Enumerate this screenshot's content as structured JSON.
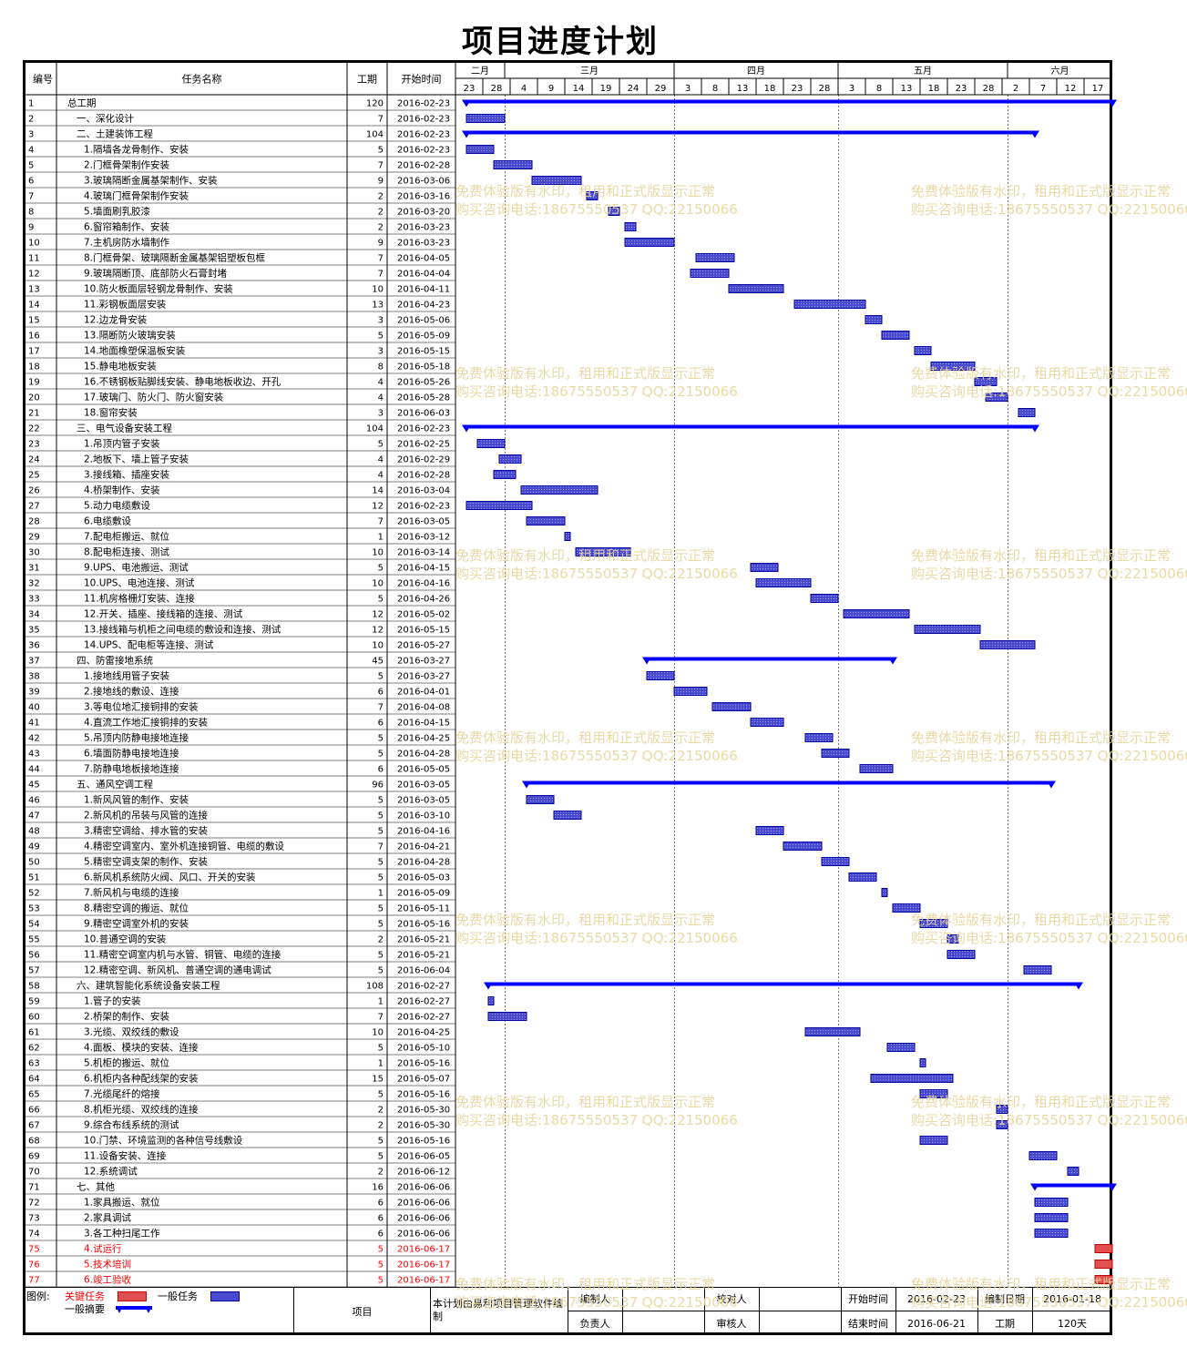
{
  "page": {
    "title": "项目进度计划"
  },
  "headers": {
    "id": "编号",
    "name": "任务名称",
    "duration": "工期",
    "start": "开始时间"
  },
  "timeline": {
    "months": [
      "二月",
      "三月",
      "四月",
      "五月",
      "六月"
    ],
    "days": [
      "23",
      "28",
      "4",
      "9",
      "14",
      "19",
      "24",
      "29",
      "3",
      "8",
      "13",
      "18",
      "23",
      "28",
      "3",
      "8",
      "13",
      "18",
      "23",
      "28",
      "2",
      "7",
      "12",
      "17"
    ]
  },
  "watermark": {
    "line1": "免费体验版有水印，租用和正式版显示正常",
    "line2": "购买咨询电话:18675550537 QQ:22150066"
  },
  "colors": {
    "normal_bar": "#4a4ad0",
    "summary_bar": "#0000ff",
    "critical_bar": "#e05050",
    "critical_text": "#ff0000"
  },
  "footer": {
    "legend_label": "图例:",
    "legend_critical": "关键任务",
    "legend_normal": "一般任务",
    "legend_summary": "一般摘要",
    "project_label": "项目",
    "software_note": "本计划由易利项目管理软件编制",
    "drafter_label": "编制人",
    "checker_label": "校对人",
    "owner_label": "负责人",
    "reviewer_label": "审核人",
    "start_label": "开始时间",
    "start_value": "2016-02-23",
    "end_label": "结束时间",
    "end_value": "2016-06-21",
    "draft_date_label": "编制日期",
    "draft_date_value": "2016-01-18",
    "duration_label": "工期",
    "duration_value": "120天"
  },
  "chart_data": {
    "type": "gantt",
    "x_axis": {
      "start": "2016-02-21",
      "end": "2016-06-21",
      "unit": "day"
    },
    "tasks": [
      {
        "id": "1",
        "name": "总工期",
        "level": 0,
        "duration": 120,
        "start": "2016-02-23",
        "summary": true,
        "critical": false
      },
      {
        "id": "2",
        "name": "一、深化设计",
        "level": 1,
        "duration": 7,
        "start": "2016-02-23",
        "summary": false,
        "critical": false
      },
      {
        "id": "3",
        "name": "二、土建装饰工程",
        "level": 1,
        "duration": 104,
        "start": "2016-02-23",
        "summary": true,
        "critical": false
      },
      {
        "id": "4",
        "name": "1.隔墙各龙骨制作、安装",
        "level": 2,
        "duration": 5,
        "start": "2016-02-23",
        "summary": false,
        "critical": false
      },
      {
        "id": "5",
        "name": "2.门框骨架制作安装",
        "level": 2,
        "duration": 7,
        "start": "2016-02-28",
        "summary": false,
        "critical": false
      },
      {
        "id": "6",
        "name": "3.玻璃隔断金属基架制作、安装",
        "level": 2,
        "duration": 9,
        "start": "2016-03-06",
        "summary": false,
        "critical": false
      },
      {
        "id": "7",
        "name": "4.玻璃门框骨架制作安装",
        "level": 2,
        "duration": 2,
        "start": "2016-03-16",
        "summary": false,
        "critical": false
      },
      {
        "id": "8",
        "name": "5.墙面刷乳胶漆",
        "level": 2,
        "duration": 2,
        "start": "2016-03-20",
        "summary": false,
        "critical": false
      },
      {
        "id": "9",
        "name": "6.窗帘箱制作、安装",
        "level": 2,
        "duration": 2,
        "start": "2016-03-23",
        "summary": false,
        "critical": false
      },
      {
        "id": "10",
        "name": "7.主机房防水墙制作",
        "level": 2,
        "duration": 9,
        "start": "2016-03-23",
        "summary": false,
        "critical": false
      },
      {
        "id": "11",
        "name": "8.门框骨架、玻璃隔断金属基架铝塑板包框",
        "level": 2,
        "duration": 7,
        "start": "2016-04-05",
        "summary": false,
        "critical": false
      },
      {
        "id": "12",
        "name": "9.玻璃隔断顶、底部防火石膏封堵",
        "level": 2,
        "duration": 7,
        "start": "2016-04-04",
        "summary": false,
        "critical": false
      },
      {
        "id": "13",
        "name": "10.防火板面层轻钢龙骨制作、安装",
        "level": 2,
        "duration": 10,
        "start": "2016-04-11",
        "summary": false,
        "critical": false
      },
      {
        "id": "14",
        "name": "11.彩钢板面层安装",
        "level": 2,
        "duration": 13,
        "start": "2016-04-23",
        "summary": false,
        "critical": false
      },
      {
        "id": "15",
        "name": "12.边龙骨安装",
        "level": 2,
        "duration": 3,
        "start": "2016-05-06",
        "summary": false,
        "critical": false
      },
      {
        "id": "16",
        "name": "13.隔断防火玻璃安装",
        "level": 2,
        "duration": 5,
        "start": "2016-05-09",
        "summary": false,
        "critical": false
      },
      {
        "id": "17",
        "name": "14.地面橡塑保温板安装",
        "level": 2,
        "duration": 3,
        "start": "2016-05-15",
        "summary": false,
        "critical": false
      },
      {
        "id": "18",
        "name": "15.静电地板安装",
        "level": 2,
        "duration": 8,
        "start": "2016-05-18",
        "summary": false,
        "critical": false
      },
      {
        "id": "19",
        "name": "16.不锈钢板贴脚线安装、静电地板收边、开孔",
        "level": 2,
        "duration": 4,
        "start": "2016-05-26",
        "summary": false,
        "critical": false
      },
      {
        "id": "20",
        "name": "17.玻璃门、防火门、防火窗安装",
        "level": 2,
        "duration": 4,
        "start": "2016-05-28",
        "summary": false,
        "critical": false
      },
      {
        "id": "21",
        "name": "18.窗帘安装",
        "level": 2,
        "duration": 3,
        "start": "2016-06-03",
        "summary": false,
        "critical": false
      },
      {
        "id": "22",
        "name": "三、电气设备安装工程",
        "level": 1,
        "duration": 104,
        "start": "2016-02-23",
        "summary": true,
        "critical": false
      },
      {
        "id": "23",
        "name": "1.吊顶内管子安装",
        "level": 2,
        "duration": 5,
        "start": "2016-02-25",
        "summary": false,
        "critical": false
      },
      {
        "id": "24",
        "name": "2.地板下、墙上管子安装",
        "level": 2,
        "duration": 4,
        "start": "2016-02-29",
        "summary": false,
        "critical": false
      },
      {
        "id": "25",
        "name": "3.接线箱、插座安装",
        "level": 2,
        "duration": 4,
        "start": "2016-02-28",
        "summary": false,
        "critical": false
      },
      {
        "id": "26",
        "name": "4.桥架制作、安装",
        "level": 2,
        "duration": 14,
        "start": "2016-03-04",
        "summary": false,
        "critical": false
      },
      {
        "id": "27",
        "name": "5.动力电缆敷设",
        "level": 2,
        "duration": 12,
        "start": "2016-02-23",
        "summary": false,
        "critical": false
      },
      {
        "id": "28",
        "name": "6.电缆敷设",
        "level": 2,
        "duration": 7,
        "start": "2016-03-05",
        "summary": false,
        "critical": false
      },
      {
        "id": "29",
        "name": "7.配电柜搬运、就位",
        "level": 2,
        "duration": 1,
        "start": "2016-03-12",
        "summary": false,
        "critical": false
      },
      {
        "id": "30",
        "name": "8.配电柜连接、测试",
        "level": 2,
        "duration": 10,
        "start": "2016-03-14",
        "summary": false,
        "critical": false
      },
      {
        "id": "31",
        "name": "9.UPS、电池搬运、测试",
        "level": 2,
        "duration": 5,
        "start": "2016-04-15",
        "summary": false,
        "critical": false
      },
      {
        "id": "32",
        "name": "10.UPS、电池连接、测试",
        "level": 2,
        "duration": 10,
        "start": "2016-04-16",
        "summary": false,
        "critical": false
      },
      {
        "id": "33",
        "name": "11.机房格栅灯安装、连接",
        "level": 2,
        "duration": 5,
        "start": "2016-04-26",
        "summary": false,
        "critical": false
      },
      {
        "id": "34",
        "name": "12.开关、插座、接线箱的连接、测试",
        "level": 2,
        "duration": 12,
        "start": "2016-05-02",
        "summary": false,
        "critical": false
      },
      {
        "id": "35",
        "name": "13.接线箱与机柜之间电缆的敷设和连接、测试",
        "level": 2,
        "duration": 12,
        "start": "2016-05-15",
        "summary": false,
        "critical": false
      },
      {
        "id": "36",
        "name": "14.UPS、配电柜等连接、测试",
        "level": 2,
        "duration": 10,
        "start": "2016-05-27",
        "summary": false,
        "critical": false
      },
      {
        "id": "37",
        "name": "四、防雷接地系统",
        "level": 1,
        "duration": 45,
        "start": "2016-03-27",
        "summary": true,
        "critical": false
      },
      {
        "id": "38",
        "name": "1.接地线用管子安装",
        "level": 2,
        "duration": 5,
        "start": "2016-03-27",
        "summary": false,
        "critical": false
      },
      {
        "id": "39",
        "name": "2.接地线的敷设、连接",
        "level": 2,
        "duration": 6,
        "start": "2016-04-01",
        "summary": false,
        "critical": false
      },
      {
        "id": "40",
        "name": "3.等电位地汇接铜排的安装",
        "level": 2,
        "duration": 7,
        "start": "2016-04-08",
        "summary": false,
        "critical": false
      },
      {
        "id": "41",
        "name": "4.直流工作地汇接铜排的安装",
        "level": 2,
        "duration": 6,
        "start": "2016-04-15",
        "summary": false,
        "critical": false
      },
      {
        "id": "42",
        "name": "5.吊顶内防静电接地连接",
        "level": 2,
        "duration": 5,
        "start": "2016-04-25",
        "summary": false,
        "critical": false
      },
      {
        "id": "43",
        "name": "6.墙面防静电接地连接",
        "level": 2,
        "duration": 5,
        "start": "2016-04-28",
        "summary": false,
        "critical": false
      },
      {
        "id": "44",
        "name": "7.防静电地板接地连接",
        "level": 2,
        "duration": 6,
        "start": "2016-05-05",
        "summary": false,
        "critical": false
      },
      {
        "id": "45",
        "name": "五、通风空调工程",
        "level": 1,
        "duration": 96,
        "start": "2016-03-05",
        "summary": true,
        "critical": false
      },
      {
        "id": "46",
        "name": "1.新风风管的制作、安装",
        "level": 2,
        "duration": 5,
        "start": "2016-03-05",
        "summary": false,
        "critical": false
      },
      {
        "id": "47",
        "name": "2.新风机的吊装与风管的连接",
        "level": 2,
        "duration": 5,
        "start": "2016-03-10",
        "summary": false,
        "critical": false
      },
      {
        "id": "48",
        "name": "3.精密空调给、排水管的安装",
        "level": 2,
        "duration": 5,
        "start": "2016-04-16",
        "summary": false,
        "critical": false
      },
      {
        "id": "49",
        "name": "4.精密空调室内、室外机连接铜管、电缆的敷设",
        "level": 2,
        "duration": 7,
        "start": "2016-04-21",
        "summary": false,
        "critical": false
      },
      {
        "id": "50",
        "name": "5.精密空调支架的制作、安装",
        "level": 2,
        "duration": 5,
        "start": "2016-04-28",
        "summary": false,
        "critical": false
      },
      {
        "id": "51",
        "name": "6.新风机系统防火阀、风口、开关的安装",
        "level": 2,
        "duration": 5,
        "start": "2016-05-03",
        "summary": false,
        "critical": false
      },
      {
        "id": "52",
        "name": "7.新风机与电缆的连接",
        "level": 2,
        "duration": 1,
        "start": "2016-05-09",
        "summary": false,
        "critical": false
      },
      {
        "id": "53",
        "name": "8.精密空调的搬运、就位",
        "level": 2,
        "duration": 5,
        "start": "2016-05-11",
        "summary": false,
        "critical": false
      },
      {
        "id": "54",
        "name": "9.精密空调室外机的安装",
        "level": 2,
        "duration": 5,
        "start": "2016-05-16",
        "summary": false,
        "critical": false
      },
      {
        "id": "55",
        "name": "10.普通空调的安装",
        "level": 2,
        "duration": 2,
        "start": "2016-05-21",
        "summary": false,
        "critical": false
      },
      {
        "id": "56",
        "name": "11.精密空调室内机与水管、铜管、电缆的连接",
        "level": 2,
        "duration": 5,
        "start": "2016-05-21",
        "summary": false,
        "critical": false
      },
      {
        "id": "57",
        "name": "12.精密空调、新风机、普通空调的通电调试",
        "level": 2,
        "duration": 5,
        "start": "2016-06-04",
        "summary": false,
        "critical": false
      },
      {
        "id": "58",
        "name": "六、建筑智能化系统设备安装工程",
        "level": 1,
        "duration": 108,
        "start": "2016-02-27",
        "summary": true,
        "critical": false
      },
      {
        "id": "59",
        "name": "1.管子的安装",
        "level": 2,
        "duration": 1,
        "start": "2016-02-27",
        "summary": false,
        "critical": false
      },
      {
        "id": "60",
        "name": "2.桥架的制作、安装",
        "level": 2,
        "duration": 7,
        "start": "2016-02-27",
        "summary": false,
        "critical": false
      },
      {
        "id": "61",
        "name": "3.光缆、双绞线的敷设",
        "level": 2,
        "duration": 10,
        "start": "2016-04-25",
        "summary": false,
        "critical": false
      },
      {
        "id": "62",
        "name": "4.面板、模块的安装、连接",
        "level": 2,
        "duration": 5,
        "start": "2016-05-10",
        "summary": false,
        "critical": false
      },
      {
        "id": "63",
        "name": "5.机柜的搬运、就位",
        "level": 2,
        "duration": 1,
        "start": "2016-05-16",
        "summary": false,
        "critical": false
      },
      {
        "id": "64",
        "name": "6.机柜内各种配线架的安装",
        "level": 2,
        "duration": 15,
        "start": "2016-05-07",
        "summary": false,
        "critical": false
      },
      {
        "id": "65",
        "name": "7.光缆尾纤的熔接",
        "level": 2,
        "duration": 5,
        "start": "2016-05-16",
        "summary": false,
        "critical": false
      },
      {
        "id": "66",
        "name": "8.机柜光缆、双绞线的连接",
        "level": 2,
        "duration": 2,
        "start": "2016-05-30",
        "summary": false,
        "critical": false
      },
      {
        "id": "67",
        "name": "9.综合布线系统的测试",
        "level": 2,
        "duration": 2,
        "start": "2016-05-30",
        "summary": false,
        "critical": false
      },
      {
        "id": "68",
        "name": "10.门禁、环境监测的各种信号线敷设",
        "level": 2,
        "duration": 5,
        "start": "2016-05-16",
        "summary": false,
        "critical": false
      },
      {
        "id": "69",
        "name": "11.设备安装、连接",
        "level": 2,
        "duration": 5,
        "start": "2016-06-05",
        "summary": false,
        "critical": false
      },
      {
        "id": "70",
        "name": "12.系统调试",
        "level": 2,
        "duration": 2,
        "start": "2016-06-12",
        "summary": false,
        "critical": false
      },
      {
        "id": "71",
        "name": "七、其他",
        "level": 1,
        "duration": 16,
        "start": "2016-06-06",
        "summary": true,
        "critical": false
      },
      {
        "id": "72",
        "name": "1.家具搬运、就位",
        "level": 2,
        "duration": 6,
        "start": "2016-06-06",
        "summary": false,
        "critical": false
      },
      {
        "id": "73",
        "name": "2.家具调试",
        "level": 2,
        "duration": 6,
        "start": "2016-06-06",
        "summary": false,
        "critical": false
      },
      {
        "id": "74",
        "name": "3.各工种扫尾工作",
        "level": 2,
        "duration": 6,
        "start": "2016-06-06",
        "summary": false,
        "critical": false
      },
      {
        "id": "75",
        "name": "4.试运行",
        "level": 2,
        "duration": 5,
        "start": "2016-06-17",
        "summary": false,
        "critical": true
      },
      {
        "id": "76",
        "name": "5.技术培训",
        "level": 2,
        "duration": 5,
        "start": "2016-06-17",
        "summary": false,
        "critical": true
      },
      {
        "id": "77",
        "name": "6.竣工验收",
        "level": 2,
        "duration": 5,
        "start": "2016-06-17",
        "summary": false,
        "critical": true
      }
    ]
  }
}
